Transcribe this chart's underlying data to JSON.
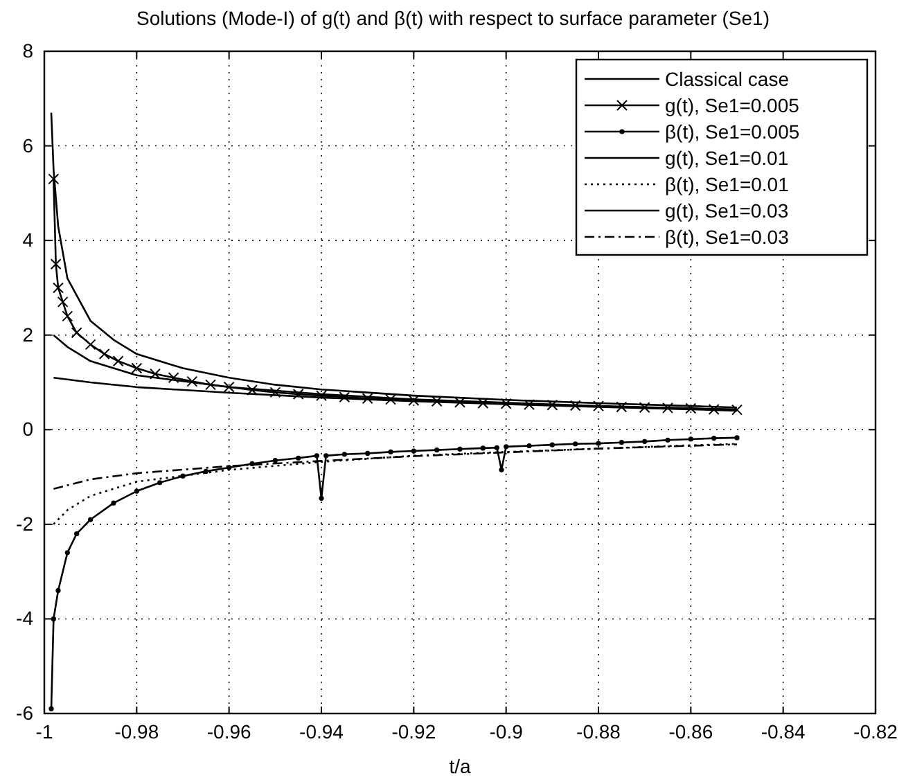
{
  "chart_data": {
    "type": "line",
    "title": "Solutions (Mode-I) of g(t) and   β(t) with respect to surface parameter (Se1)",
    "xlabel": "t/a",
    "xlim": [
      -1,
      -0.82
    ],
    "xticks": [
      {
        "value": -1,
        "label": "-1"
      },
      -0.98,
      -0.96,
      -0.94,
      -0.92,
      -0.9,
      -0.88,
      -0.86,
      -0.84,
      -0.82
    ],
    "ylim": [
      -6,
      8
    ],
    "yticks": [
      -6,
      -4,
      -2,
      0,
      2,
      4,
      6,
      8
    ],
    "grid": true,
    "legend": "top right",
    "series": [
      {
        "name": "Classical case",
        "color": "#000000",
        "line_style": "solid",
        "marker": "none",
        "x": [
          -0.9985,
          -0.998,
          -0.997,
          -0.995,
          -0.99,
          -0.985,
          -0.98,
          -0.97,
          -0.96,
          -0.95,
          -0.94,
          -0.92,
          -0.9,
          -0.88,
          -0.86,
          -0.85
        ],
        "values": [
          6.7,
          5.5,
          4.3,
          3.2,
          2.3,
          1.9,
          1.6,
          1.3,
          1.1,
          0.95,
          0.85,
          0.72,
          0.63,
          0.56,
          0.5,
          0.47
        ]
      },
      {
        "name": "g(t), Se1=0.005",
        "color": "#000000",
        "line_style": "solid",
        "marker": "cross",
        "x": [
          -0.998,
          -0.9975,
          -0.997,
          -0.996,
          -0.995,
          -0.993,
          -0.99,
          -0.987,
          -0.984,
          -0.98,
          -0.976,
          -0.972,
          -0.968,
          -0.964,
          -0.96,
          -0.955,
          -0.95,
          -0.945,
          -0.94,
          -0.935,
          -0.93,
          -0.925,
          -0.92,
          -0.915,
          -0.91,
          -0.905,
          -0.9,
          -0.895,
          -0.89,
          -0.885,
          -0.88,
          -0.875,
          -0.87,
          -0.865,
          -0.86,
          -0.855,
          -0.85
        ],
        "values": [
          5.3,
          3.5,
          3.0,
          2.7,
          2.4,
          2.05,
          1.8,
          1.6,
          1.45,
          1.3,
          1.18,
          1.1,
          1.02,
          0.95,
          0.9,
          0.84,
          0.79,
          0.75,
          0.72,
          0.69,
          0.66,
          0.64,
          0.62,
          0.6,
          0.58,
          0.56,
          0.55,
          0.53,
          0.52,
          0.51,
          0.5,
          0.48,
          0.47,
          0.46,
          0.45,
          0.43,
          0.42
        ]
      },
      {
        "name": "β(t), Se1=0.005",
        "color": "#000000",
        "line_style": "solid",
        "marker": "circle",
        "x": [
          -0.9985,
          -0.998,
          -0.997,
          -0.995,
          -0.993,
          -0.99,
          -0.985,
          -0.98,
          -0.975,
          -0.97,
          -0.965,
          -0.96,
          -0.955,
          -0.95,
          -0.945,
          -0.941,
          -0.94,
          -0.939,
          -0.935,
          -0.93,
          -0.925,
          -0.92,
          -0.915,
          -0.91,
          -0.905,
          -0.902,
          -0.901,
          -0.9,
          -0.895,
          -0.89,
          -0.885,
          -0.88,
          -0.875,
          -0.87,
          -0.865,
          -0.86,
          -0.855,
          -0.85
        ],
        "values": [
          -5.9,
          -4.0,
          -3.4,
          -2.6,
          -2.2,
          -1.9,
          -1.55,
          -1.3,
          -1.12,
          -0.98,
          -0.88,
          -0.8,
          -0.72,
          -0.65,
          -0.6,
          -0.55,
          -1.45,
          -0.55,
          -0.52,
          -0.5,
          -0.47,
          -0.45,
          -0.43,
          -0.41,
          -0.39,
          -0.38,
          -0.85,
          -0.36,
          -0.34,
          -0.32,
          -0.3,
          -0.29,
          -0.27,
          -0.25,
          -0.22,
          -0.2,
          -0.18,
          -0.17
        ]
      },
      {
        "name": "g(t), Se1=0.01",
        "color": "#000000",
        "line_style": "solid",
        "marker": "none",
        "x": [
          -0.998,
          -0.995,
          -0.99,
          -0.98,
          -0.96,
          -0.94,
          -0.92,
          -0.9,
          -0.88,
          -0.86,
          -0.85
        ],
        "values": [
          2.0,
          1.75,
          1.45,
          1.15,
          0.9,
          0.75,
          0.64,
          0.57,
          0.5,
          0.45,
          0.43
        ]
      },
      {
        "name": "β(t), Se1=0.01",
        "color": "#000000",
        "line_style": "dotted",
        "marker": "none",
        "x": [
          -0.998,
          -0.995,
          -0.99,
          -0.98,
          -0.96,
          -0.94,
          -0.92,
          -0.9,
          -0.88,
          -0.86,
          -0.85
        ],
        "values": [
          -2.0,
          -1.7,
          -1.4,
          -1.1,
          -0.85,
          -0.68,
          -0.55,
          -0.47,
          -0.4,
          -0.33,
          -0.3
        ]
      },
      {
        "name": "g(t), Se1=0.03",
        "color": "#000000",
        "line_style": "solid",
        "marker": "none",
        "x": [
          -0.998,
          -0.99,
          -0.98,
          -0.96,
          -0.94,
          -0.92,
          -0.9,
          -0.88,
          -0.86,
          -0.85
        ],
        "values": [
          1.1,
          1.0,
          0.9,
          0.78,
          0.68,
          0.6,
          0.54,
          0.48,
          0.43,
          0.4
        ]
      },
      {
        "name": "β(t), Se1=0.03",
        "color": "#000000",
        "line_style": "dashed",
        "marker": "none",
        "x": [
          -0.998,
          -0.99,
          -0.98,
          -0.96,
          -0.94,
          -0.92,
          -0.9,
          -0.88,
          -0.86,
          -0.85
        ],
        "values": [
          -1.25,
          -1.05,
          -0.92,
          -0.77,
          -0.66,
          -0.56,
          -0.48,
          -0.4,
          -0.34,
          -0.31
        ]
      }
    ]
  }
}
